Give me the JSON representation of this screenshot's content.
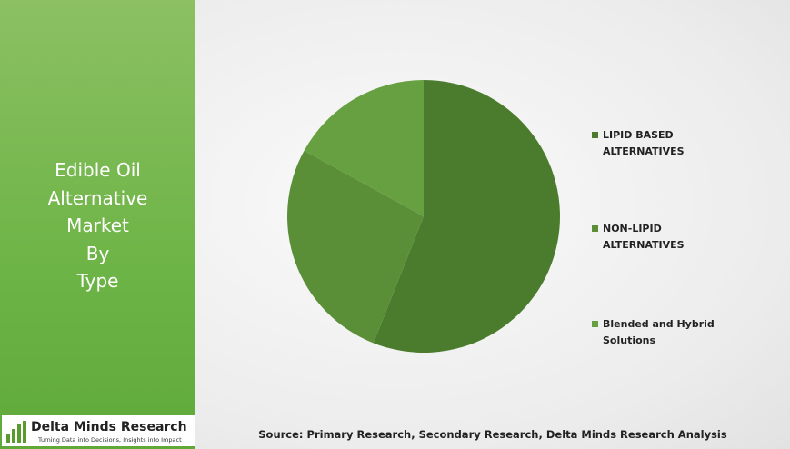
{
  "chart_data": {
    "type": "pie",
    "title_lines": [
      "Edible Oil",
      "Alternative",
      "Market",
      "By",
      "Type"
    ],
    "categories": [
      "LIPID BASED ALTERNATIVES",
      "NON-LIPID ALTERNATIVES",
      "Blended and Hybrid Solutions"
    ],
    "values": [
      56,
      27,
      17
    ],
    "colors": [
      "#4b7c2d",
      "#5a8f38",
      "#66a040"
    ],
    "source": "Source: Primary Research, Secondary Research, Delta Minds Research Analysis"
  },
  "logo": {
    "name": "Delta Minds Research",
    "tagline": "Turning Data into Decisions, Insights into Impact"
  }
}
